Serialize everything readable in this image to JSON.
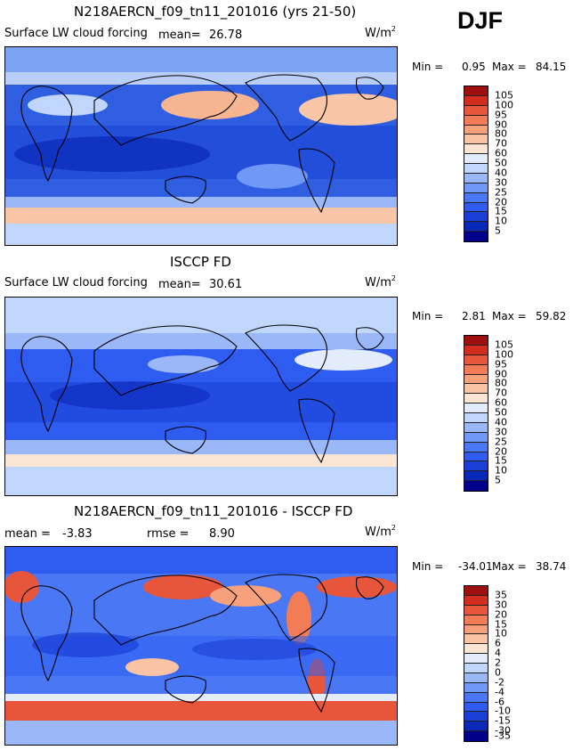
{
  "season": "DJF",
  "units_base": "W/m",
  "units_exp": "2",
  "colors": {
    "abs_scale": [
      "#000088",
      "#0a28b8",
      "#1a3fd6",
      "#2e5cf0",
      "#4a78f5",
      "#6f98f7",
      "#9ab8f8",
      "#c0d6fa",
      "#e2ecfb",
      "#fbe5d4",
      "#f9c3a4",
      "#f6a07c",
      "#f17c56",
      "#e7553a",
      "#d32d1f",
      "#9e1010"
    ],
    "diff_scale": [
      "#000088",
      "#0a28b8",
      "#1a3fd6",
      "#2e5cf0",
      "#4a78f5",
      "#6f98f7",
      "#9ab8f8",
      "#c0d6fa",
      "#e2ecfb",
      "#fbe5d4",
      "#f9c3a4",
      "#f6a07c",
      "#f17c56",
      "#e7553a",
      "#d32d1f",
      "#9e1010"
    ]
  },
  "panels": [
    {
      "title": "N218AERCN_f09_tn11_201016 (yrs 21-50)",
      "label": "Surface LW cloud forcing",
      "mean_label": "mean=",
      "mean_value": "26.78",
      "min_label": "Min =",
      "min_value": "0.95",
      "max_label": "Max =",
      "max_value": "84.15",
      "levels": [
        "105",
        "100",
        "95",
        "90",
        "80",
        "70",
        "60",
        "50",
        "40",
        "30",
        "25",
        "20",
        "15",
        "10",
        "5"
      ]
    },
    {
      "title": "ISCCP FD",
      "label": "Surface LW cloud forcing",
      "mean_label": "mean=",
      "mean_value": "30.61",
      "min_label": "Min =",
      "min_value": "2.81",
      "max_label": "Max =",
      "max_value": "59.82",
      "levels": [
        "105",
        "100",
        "95",
        "90",
        "80",
        "70",
        "60",
        "50",
        "40",
        "30",
        "25",
        "20",
        "15",
        "10",
        "5"
      ]
    },
    {
      "title": "N218AERCN_f09_tn11_201016 - ISCCP FD",
      "mean_label": "mean =",
      "mean_value": "-3.83",
      "rmse_label": "rmse =",
      "rmse_value": "8.90",
      "min_label": "Min =",
      "min_value": "-34.01",
      "max_label": "Max =",
      "max_value": "38.74",
      "levels": [
        "35",
        "30",
        "20",
        "15",
        "10",
        "6",
        "4",
        "2",
        "0",
        "-2",
        "-4",
        "-6",
        "-10",
        "-15",
        "-30",
        "-35"
      ]
    }
  ]
}
